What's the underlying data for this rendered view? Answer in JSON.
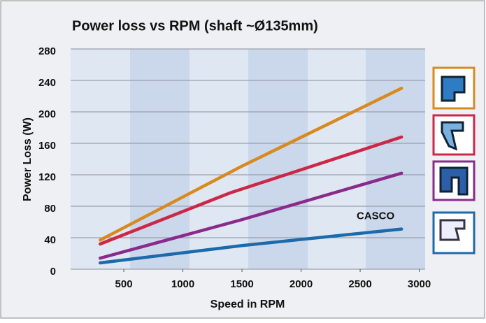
{
  "chart_data": {
    "type": "line",
    "title": "Power loss vs RPM (shaft ~Ø135mm)",
    "x_label": "Speed in RPM",
    "y_label": "Power Loss (W)",
    "series": [
      {
        "color": "#d98a1e",
        "x": [
          300,
          1500,
          2850
        ],
        "values": [
          37,
          131,
          230
        ]
      },
      {
        "color": "#cc2747",
        "x": [
          300,
          1400,
          2850
        ],
        "values": [
          32,
          97,
          168
        ]
      },
      {
        "color": "#8a2a8a",
        "x": [
          300,
          1500,
          2850
        ],
        "values": [
          14,
          63,
          122
        ]
      },
      {
        "name": "CASCO",
        "color": "#1d6aab",
        "x": [
          300,
          1500,
          2850
        ],
        "values": [
          8,
          30,
          51
        ]
      }
    ],
    "xlim": [
      50,
      3050
    ],
    "xticks": [
      500,
      1000,
      1500,
      2000,
      2500,
      3000
    ],
    "ylim": [
      0,
      280
    ],
    "yticks": [
      0,
      40,
      80,
      120,
      160,
      200,
      240,
      280
    ],
    "grid": true
  }
}
